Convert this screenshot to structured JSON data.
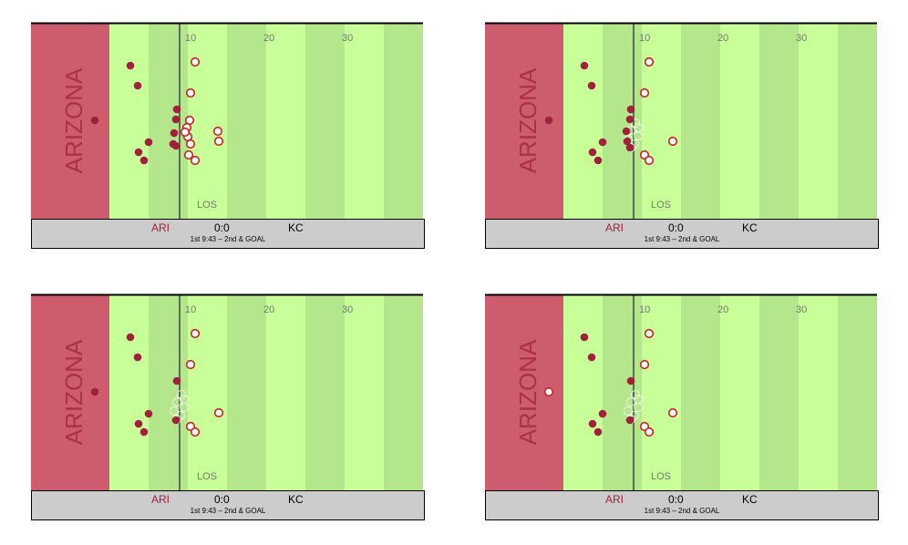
{
  "colors": {
    "endzone": "#cd5c6e",
    "turf_light": "#c8ff98",
    "turf_dark": "#b4e68c",
    "team_home": "#a0213b",
    "los_line": "#5a6e55",
    "scoreboard_bg": "#cccccc"
  },
  "field": {
    "endzone_text": "ARIZONA",
    "los_label": "LOS",
    "yard_numbers": [
      "10",
      "20",
      "30"
    ],
    "yard_positions": [
      10,
      20,
      30
    ],
    "los_yard": 9.7,
    "visible_yards": [
      -10,
      40
    ]
  },
  "scoreboard": {
    "team_left": "ARI",
    "score": "0:0",
    "team_right": "KC",
    "status": "1st 9:43 – 2nd & GOAL"
  },
  "frames": [
    {
      "offense": [
        [
          -1,
          70
        ],
        [
          -3,
          78
        ],
        [
          -1,
          94
        ],
        [
          -5,
          113
        ],
        [
          -3,
          117
        ],
        [
          -1,
          108
        ],
        [
          -5,
          116
        ],
        [
          -2,
          123
        ],
        [
          -2,
          129
        ],
        [
          -2,
          131
        ],
        [
          -5,
          134
        ]
      ],
      "defense": [
        [
          12,
          90
        ],
        [
          11,
          95
        ],
        [
          11.5,
          98
        ],
        [
          11,
          103
        ],
        [
          12,
          106
        ],
        [
          11,
          107
        ],
        [
          15,
          115
        ],
        [
          15,
          117
        ],
        [
          11,
          120
        ],
        [
          12,
          122
        ],
        [
          12,
          135
        ]
      ],
      "ghosts": []
    },
    {
      "offense": [
        [
          -1,
          70
        ],
        [
          -3,
          78
        ],
        [
          -1,
          93
        ],
        [
          -5,
          113
        ],
        [
          -3,
          117
        ],
        [
          -1,
          108
        ],
        [
          -5,
          116
        ],
        [
          -1,
          120
        ],
        [
          -1,
          125
        ],
        [
          -1,
          131
        ],
        [
          -5,
          134
        ]
      ],
      "defense": [
        [
          12,
          85
        ],
        [
          11,
          95
        ],
        [
          15,
          112
        ],
        [
          11,
          120
        ],
        [
          12,
          122
        ]
      ],
      "ghosts": [
        [
          11,
          100
        ],
        [
          11,
          104
        ],
        [
          12,
          107
        ],
        [
          10,
          111
        ],
        [
          11,
          114
        ],
        [
          12,
          118
        ]
      ]
    },
    {
      "offense": [
        [
          -1,
          70
        ],
        [
          -3,
          78
        ],
        [
          -1,
          93
        ],
        [
          -5,
          113
        ],
        [
          -3,
          117
        ],
        [
          -1,
          108
        ],
        [
          -5,
          116
        ],
        [
          -2,
          120
        ],
        [
          -2,
          131
        ],
        [
          -2,
          131
        ],
        [
          -5,
          134
        ]
      ],
      "defense": [
        [
          12,
          85
        ],
        [
          11,
          95
        ],
        [
          15,
          112
        ],
        [
          11,
          120
        ],
        [
          12,
          122
        ]
      ],
      "ghosts": [
        [
          11,
          100
        ],
        [
          11,
          104
        ],
        [
          12,
          107
        ],
        [
          10,
          111
        ],
        [
          11,
          114
        ],
        [
          12,
          118
        ]
      ]
    },
    {
      "offense": [
        [
          -1,
          70
        ],
        [
          -3,
          78
        ],
        [
          -1,
          93
        ],
        [
          -5,
          113
        ],
        [
          -3,
          117
        ],
        [
          -1,
          108
        ],
        [
          -5,
          116
        ],
        [
          -2,
          120
        ],
        [
          -2,
          131
        ],
        [
          -2,
          131
        ]
      ],
      "defense": [
        [
          -5,
          134
        ],
        [
          12,
          85
        ],
        [
          11,
          95
        ],
        [
          15,
          112
        ],
        [
          11,
          120
        ],
        [
          12,
          122
        ]
      ],
      "ghosts": [
        [
          11,
          100
        ],
        [
          11,
          104
        ],
        [
          12,
          107
        ],
        [
          10,
          111
        ],
        [
          11,
          114
        ],
        [
          12,
          118
        ]
      ]
    }
  ]
}
